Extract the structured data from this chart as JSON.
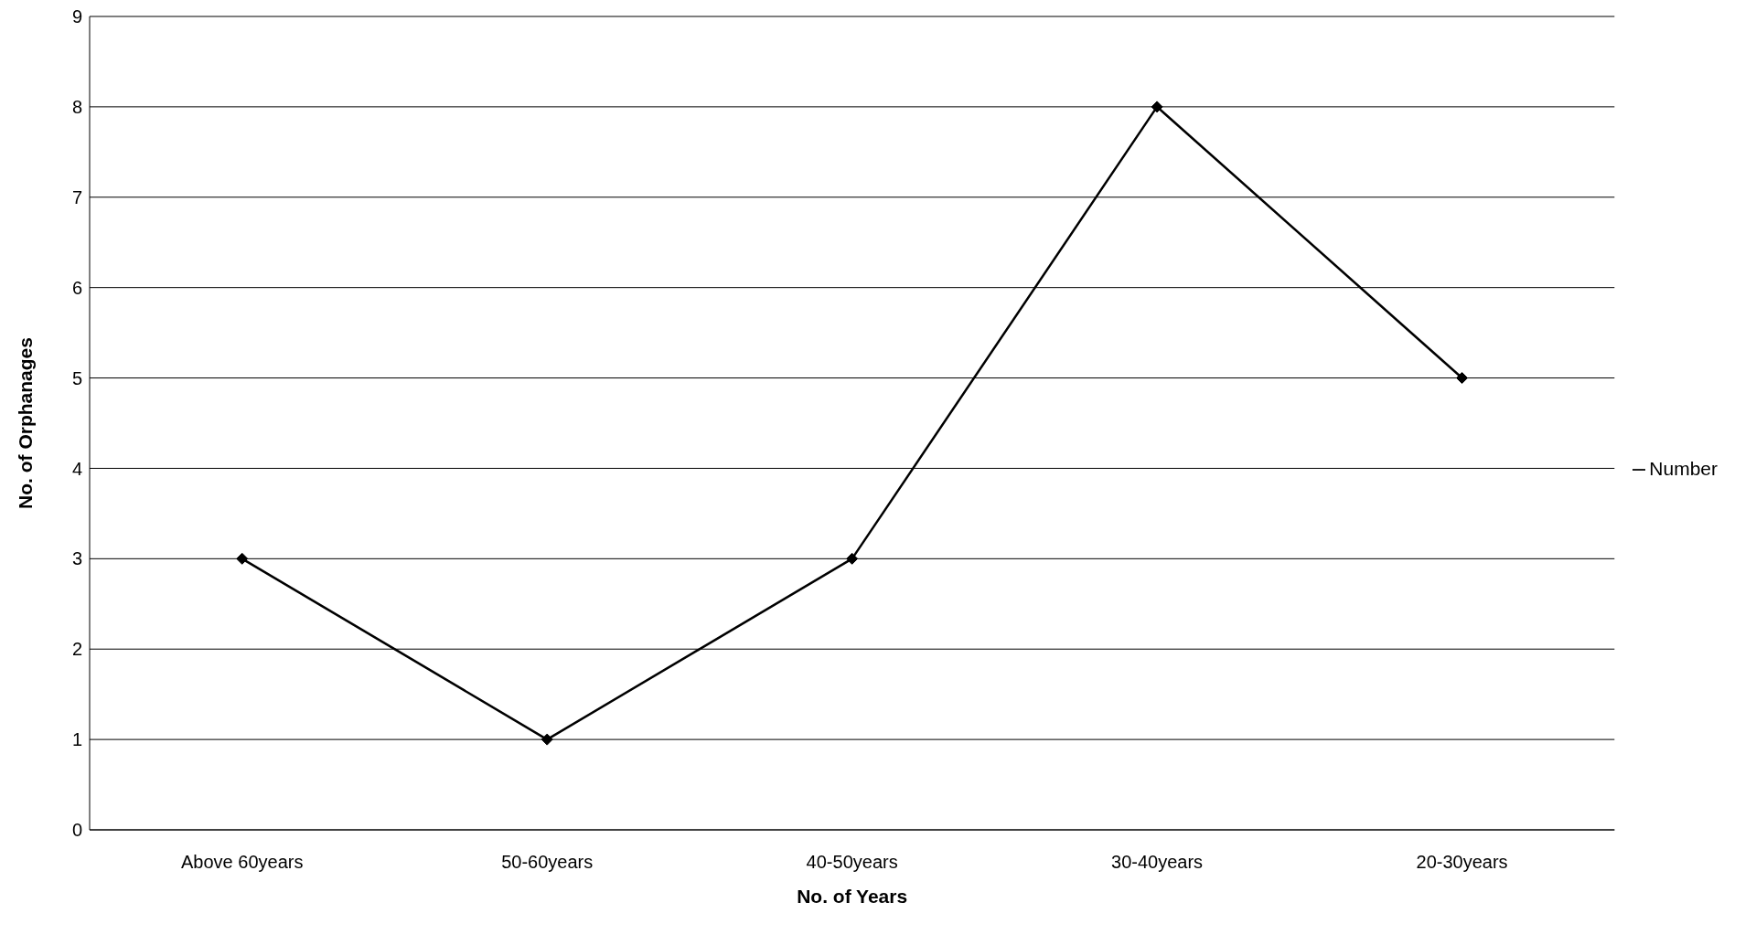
{
  "chart_data": {
    "type": "line",
    "xlabel": "No. of Years",
    "ylabel": "No. of Orphanages",
    "categories": [
      "Above 60years",
      "50-60years",
      "40-50years",
      "30-40years",
      "20-30years"
    ],
    "series": [
      {
        "name": "Number",
        "color": "#000000",
        "values": [
          3,
          1,
          3,
          8,
          5
        ]
      }
    ],
    "ylim": [
      0,
      9
    ],
    "yticks": [
      0,
      1,
      2,
      3,
      4,
      5,
      6,
      7,
      8,
      9
    ],
    "grid": "y",
    "legend": "right",
    "marker": "diamond",
    "line_style": "solid"
  }
}
